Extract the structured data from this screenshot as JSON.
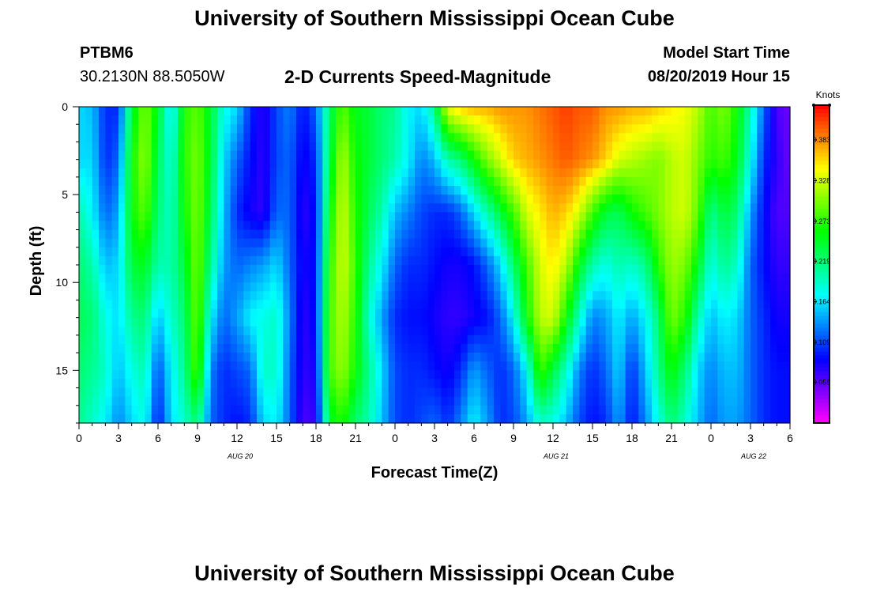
{
  "header": {
    "title": "University of Southern Mississippi Ocean Cube",
    "station": "PTBM6",
    "coords": "30.2130N 88.5050W",
    "subtitle": "2-D Currents Speed-Magnitude",
    "start_label": "Model Start Time",
    "start_value": "08/20/2019 Hour 15"
  },
  "footer": {
    "title": "University of Southern Mississippi Ocean Cube"
  },
  "chart_data": {
    "type": "heatmap",
    "title": "2-D Currents Speed-Magnitude",
    "xlabel": "Forecast Time(Z)",
    "ylabel": "Depth (ft)",
    "xlim": [
      0,
      54
    ],
    "ylim": [
      18,
      0
    ],
    "x_ticks": [
      {
        "x": 0,
        "label": "0"
      },
      {
        "x": 3,
        "label": "3"
      },
      {
        "x": 6,
        "label": "6"
      },
      {
        "x": 9,
        "label": "9"
      },
      {
        "x": 12,
        "label": "12"
      },
      {
        "x": 15,
        "label": "15"
      },
      {
        "x": 18,
        "label": "18"
      },
      {
        "x": 21,
        "label": "21"
      },
      {
        "x": 24,
        "label": "0"
      },
      {
        "x": 27,
        "label": "3"
      },
      {
        "x": 30,
        "label": "6"
      },
      {
        "x": 33,
        "label": "9"
      },
      {
        "x": 36,
        "label": "12"
      },
      {
        "x": 39,
        "label": "15"
      },
      {
        "x": 42,
        "label": "18"
      },
      {
        "x": 45,
        "label": "21"
      },
      {
        "x": 48,
        "label": "0"
      },
      {
        "x": 51,
        "label": "3"
      },
      {
        "x": 54,
        "label": "6"
      }
    ],
    "date_labels": [
      {
        "x": 12,
        "label": "AUG 20"
      },
      {
        "x": 36,
        "label": "AUG 21"
      },
      {
        "x": 51,
        "label": "AUG 22"
      }
    ],
    "y_ticks": [
      0,
      5,
      10,
      15
    ],
    "colorbar": {
      "unit": "Knots",
      "range": [
        0.0,
        0.43
      ],
      "ticks": [
        "0.383",
        "0.328",
        "0.273",
        "0.219",
        "0.164",
        "0.109",
        "0.055"
      ]
    },
    "x_hours": [
      0,
      1,
      2,
      3,
      4,
      5,
      6,
      7,
      8,
      9,
      10,
      11,
      12,
      13,
      14,
      15,
      16,
      17,
      18,
      19,
      20,
      21,
      22,
      23,
      24,
      25,
      26,
      27,
      28,
      29,
      30,
      31,
      32,
      33,
      34,
      35,
      36,
      37,
      38,
      39,
      40,
      41,
      42,
      43,
      44,
      45,
      46,
      47,
      48,
      49,
      50,
      51,
      52,
      53,
      54
    ],
    "depth_ft": [
      0,
      3,
      6,
      9,
      12,
      15,
      18
    ],
    "speed_knots": [
      [
        0.16,
        0.15,
        0.1,
        0.1,
        0.24,
        0.3,
        0.25,
        0.16,
        0.27,
        0.29,
        0.24,
        0.18,
        0.16,
        0.1,
        0.07,
        0.11,
        0.13,
        0.09,
        0.12,
        0.22,
        0.29,
        0.25,
        0.24,
        0.22,
        0.21,
        0.17,
        0.16,
        0.21,
        0.34,
        0.36,
        0.37,
        0.37,
        0.38,
        0.38,
        0.38,
        0.39,
        0.4,
        0.41,
        0.4,
        0.4,
        0.38,
        0.38,
        0.37,
        0.37,
        0.36,
        0.35,
        0.34,
        0.32,
        0.28,
        0.3,
        0.26,
        0.2,
        0.12,
        0.06,
        0.05
      ],
      [
        0.16,
        0.16,
        0.1,
        0.12,
        0.26,
        0.31,
        0.23,
        0.18,
        0.27,
        0.3,
        0.24,
        0.16,
        0.12,
        0.09,
        0.07,
        0.11,
        0.12,
        0.08,
        0.1,
        0.23,
        0.32,
        0.26,
        0.24,
        0.22,
        0.2,
        0.17,
        0.13,
        0.15,
        0.2,
        0.22,
        0.26,
        0.3,
        0.33,
        0.36,
        0.37,
        0.38,
        0.39,
        0.4,
        0.39,
        0.38,
        0.36,
        0.33,
        0.32,
        0.31,
        0.3,
        0.32,
        0.33,
        0.3,
        0.27,
        0.28,
        0.25,
        0.18,
        0.1,
        0.07,
        0.05
      ],
      [
        0.2,
        0.17,
        0.12,
        0.14,
        0.26,
        0.29,
        0.22,
        0.19,
        0.26,
        0.3,
        0.23,
        0.15,
        0.1,
        0.08,
        0.07,
        0.12,
        0.12,
        0.07,
        0.09,
        0.25,
        0.33,
        0.27,
        0.23,
        0.2,
        0.15,
        0.13,
        0.11,
        0.1,
        0.1,
        0.12,
        0.16,
        0.2,
        0.24,
        0.28,
        0.33,
        0.35,
        0.37,
        0.36,
        0.33,
        0.28,
        0.24,
        0.23,
        0.26,
        0.28,
        0.3,
        0.32,
        0.33,
        0.29,
        0.21,
        0.24,
        0.22,
        0.14,
        0.09,
        0.06,
        0.06
      ],
      [
        0.22,
        0.2,
        0.15,
        0.16,
        0.24,
        0.25,
        0.2,
        0.2,
        0.24,
        0.3,
        0.21,
        0.14,
        0.12,
        0.13,
        0.14,
        0.16,
        0.12,
        0.08,
        0.09,
        0.27,
        0.33,
        0.28,
        0.21,
        0.17,
        0.12,
        0.1,
        0.1,
        0.09,
        0.08,
        0.08,
        0.09,
        0.12,
        0.16,
        0.22,
        0.28,
        0.33,
        0.35,
        0.32,
        0.25,
        0.2,
        0.18,
        0.2,
        0.19,
        0.21,
        0.27,
        0.31,
        0.3,
        0.25,
        0.18,
        0.21,
        0.19,
        0.12,
        0.09,
        0.07,
        0.07
      ],
      [
        0.23,
        0.22,
        0.18,
        0.16,
        0.21,
        0.22,
        0.15,
        0.19,
        0.22,
        0.3,
        0.17,
        0.12,
        0.14,
        0.17,
        0.18,
        0.19,
        0.13,
        0.07,
        0.09,
        0.28,
        0.32,
        0.27,
        0.19,
        0.14,
        0.1,
        0.09,
        0.09,
        0.08,
        0.07,
        0.07,
        0.08,
        0.09,
        0.12,
        0.17,
        0.26,
        0.32,
        0.33,
        0.26,
        0.19,
        0.13,
        0.14,
        0.17,
        0.14,
        0.17,
        0.22,
        0.3,
        0.27,
        0.2,
        0.15,
        0.17,
        0.16,
        0.12,
        0.1,
        0.08,
        0.08
      ],
      [
        0.22,
        0.21,
        0.19,
        0.15,
        0.18,
        0.2,
        0.11,
        0.17,
        0.21,
        0.29,
        0.13,
        0.1,
        0.11,
        0.12,
        0.19,
        0.19,
        0.12,
        0.07,
        0.08,
        0.28,
        0.31,
        0.26,
        0.21,
        0.16,
        0.11,
        0.1,
        0.1,
        0.09,
        0.08,
        0.1,
        0.14,
        0.12,
        0.1,
        0.12,
        0.17,
        0.28,
        0.24,
        0.19,
        0.13,
        0.1,
        0.12,
        0.16,
        0.1,
        0.15,
        0.21,
        0.26,
        0.22,
        0.16,
        0.13,
        0.15,
        0.15,
        0.12,
        0.1,
        0.09,
        0.09
      ],
      [
        0.21,
        0.19,
        0.17,
        0.13,
        0.16,
        0.18,
        0.09,
        0.16,
        0.19,
        0.22,
        0.12,
        0.1,
        0.09,
        0.1,
        0.16,
        0.17,
        0.12,
        0.06,
        0.07,
        0.24,
        0.27,
        0.22,
        0.2,
        0.15,
        0.11,
        0.1,
        0.11,
        0.12,
        0.1,
        0.13,
        0.17,
        0.14,
        0.1,
        0.11,
        0.14,
        0.19,
        0.18,
        0.15,
        0.11,
        0.09,
        0.1,
        0.14,
        0.09,
        0.13,
        0.18,
        0.22,
        0.19,
        0.15,
        0.12,
        0.14,
        0.14,
        0.12,
        0.1,
        0.09,
        0.09
      ]
    ]
  }
}
